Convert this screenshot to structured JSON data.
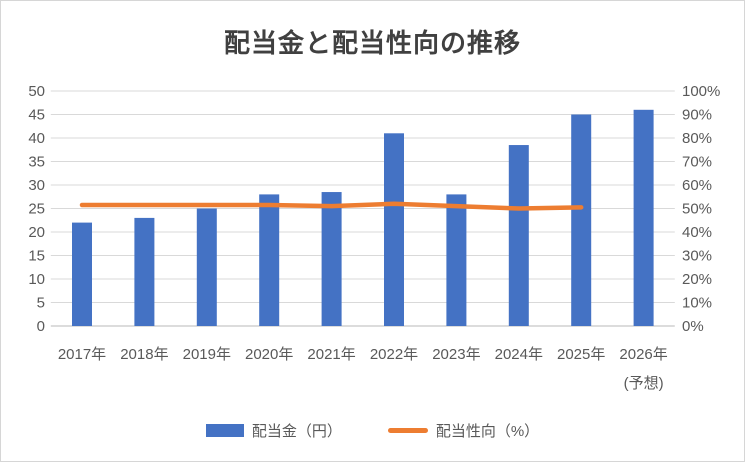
{
  "chart_data": {
    "type": "bar+line",
    "title": "配当金と配当性向の推移",
    "categories": [
      "2017年",
      "2018年",
      "2019年",
      "2020年",
      "2021年",
      "2022年",
      "2023年",
      "2024年",
      "2025年",
      "2026年"
    ],
    "category_note": {
      "index": 9,
      "label": "(予想)"
    },
    "series": [
      {
        "name": "配当金（円）",
        "type": "bar",
        "axis": "left",
        "color": "#4472C4",
        "values": [
          22,
          23,
          25,
          28,
          28.5,
          41,
          28,
          38.5,
          45,
          46
        ]
      },
      {
        "name": "配当性向（%）",
        "type": "line",
        "axis": "right",
        "color": "#ED7D31",
        "values": [
          51.5,
          51.5,
          51.5,
          51.5,
          51,
          52,
          51,
          50,
          50.5,
          null
        ]
      }
    ],
    "left_axis": {
      "min": 0,
      "max": 50,
      "step": 5,
      "tick_labels": [
        "0",
        "5",
        "10",
        "15",
        "20",
        "25",
        "30",
        "35",
        "40",
        "45",
        "50"
      ]
    },
    "right_axis": {
      "min": 0,
      "max": 100,
      "step": 10,
      "tick_labels": [
        "0%",
        "10%",
        "20%",
        "30%",
        "40%",
        "50%",
        "60%",
        "70%",
        "80%",
        "90%",
        "100%"
      ]
    },
    "grid": true,
    "legend_position": "bottom",
    "colors": {
      "gridline": "#d9d9d9",
      "axis_line": "#c8c8c8",
      "tick_text": "#595959",
      "title_text": "#404040"
    }
  }
}
